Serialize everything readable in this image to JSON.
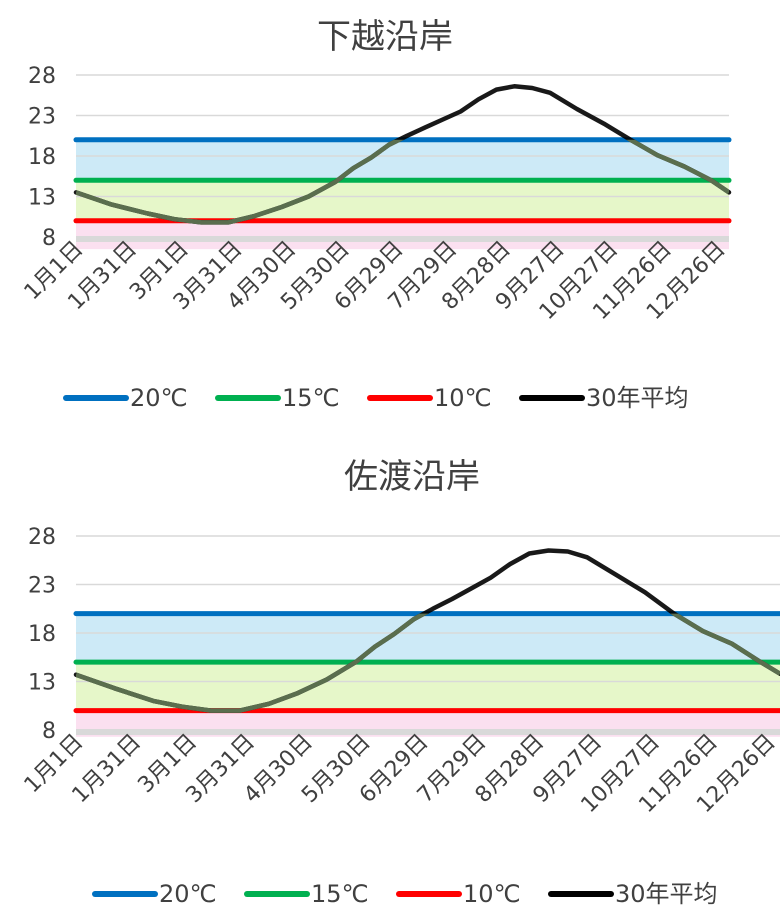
{
  "chart_data": [
    {
      "type": "line",
      "title": "下越沿岸",
      "y_ticks": [
        "28",
        "23",
        "18",
        "13",
        "8"
      ],
      "x_tick_labels": [
        "1月1日",
        "1月31日",
        "3月1日",
        "3月31日",
        "4月30日",
        "5月30日",
        "6月29日",
        "7月29日",
        "8月28日",
        "9月27日",
        "10月27日",
        "11月26日",
        "12月26日"
      ],
      "x_tick_days": [
        0,
        30,
        59,
        89,
        119,
        149,
        179,
        209,
        239,
        269,
        299,
        329,
        359
      ],
      "ylim": [
        8,
        28
      ],
      "grid": true,
      "legend_position": "bottom",
      "bands": [
        {
          "from": 6.5,
          "to": 10,
          "color": "#fbe0f0"
        },
        {
          "from": 10,
          "to": 15,
          "color": "#e6f7c9"
        },
        {
          "from": 15,
          "to": 20,
          "color": "#cdeaf7"
        }
      ],
      "series": [
        {
          "name": "20℃",
          "color": "#0070c0",
          "x": [
            0,
            365
          ],
          "values": [
            20,
            20
          ]
        },
        {
          "name": "15℃",
          "color": "#00b050",
          "x": [
            0,
            365
          ],
          "values": [
            15,
            15
          ]
        },
        {
          "name": "10℃",
          "color": "#ff0000",
          "x": [
            0,
            365
          ],
          "values": [
            10,
            10
          ]
        },
        {
          "name": "30年平均",
          "color": "#000000",
          "x": [
            0,
            20,
            40,
            55,
            70,
            85,
            100,
            115,
            130,
            145,
            155,
            165,
            175,
            185,
            195,
            205,
            215,
            225,
            235,
            245,
            255,
            265,
            280,
            295,
            310,
            325,
            340,
            355,
            365
          ],
          "values": [
            13.5,
            12.0,
            10.9,
            10.2,
            9.8,
            9.8,
            10.6,
            11.7,
            13.0,
            14.8,
            16.5,
            17.8,
            19.4,
            20.5,
            21.5,
            22.5,
            23.5,
            25.0,
            26.2,
            26.6,
            26.4,
            25.8,
            23.8,
            22.0,
            20.0,
            18.1,
            16.7,
            15.0,
            13.5
          ]
        }
      ]
    },
    {
      "type": "line",
      "title": "佐渡沿岸",
      "y_ticks": [
        "28",
        "23",
        "18",
        "13",
        "8"
      ],
      "x_tick_labels": [
        "1月1日",
        "1月31日",
        "3月1日",
        "3月31日",
        "4月30日",
        "5月30日",
        "6月29日",
        "7月29日",
        "8月28日",
        "9月27日",
        "10月27日",
        "11月26日",
        "12月26日"
      ],
      "x_tick_days": [
        0,
        30,
        59,
        89,
        119,
        149,
        179,
        209,
        239,
        269,
        299,
        329,
        359
      ],
      "ylim": [
        8,
        28
      ],
      "grid": true,
      "legend_position": "bottom",
      "bands": [
        {
          "from": 7.3,
          "to": 10,
          "color": "#fbe0f0"
        },
        {
          "from": 10,
          "to": 15,
          "color": "#e6f7c9"
        },
        {
          "from": 15,
          "to": 20,
          "color": "#cdeaf7"
        }
      ],
      "series": [
        {
          "name": "20℃",
          "color": "#0070c0",
          "x": [
            0,
            365
          ],
          "values": [
            20,
            20
          ]
        },
        {
          "name": "15℃",
          "color": "#00b050",
          "x": [
            0,
            365
          ],
          "values": [
            15,
            15
          ]
        },
        {
          "name": "10℃",
          "color": "#ff0000",
          "x": [
            0,
            365
          ],
          "values": [
            10,
            10
          ]
        },
        {
          "name": "30年平均",
          "color": "#000000",
          "x": [
            0,
            20,
            40,
            55,
            70,
            85,
            100,
            115,
            130,
            145,
            155,
            165,
            175,
            185,
            195,
            205,
            215,
            225,
            235,
            245,
            255,
            265,
            280,
            295,
            310,
            325,
            340,
            355,
            365
          ],
          "values": [
            13.7,
            12.3,
            11.0,
            10.4,
            10.0,
            10.0,
            10.7,
            11.8,
            13.2,
            15.0,
            16.6,
            17.9,
            19.4,
            20.5,
            21.5,
            22.6,
            23.7,
            25.1,
            26.2,
            26.5,
            26.4,
            25.8,
            24.0,
            22.2,
            20.0,
            18.2,
            16.9,
            15.0,
            13.8
          ]
        }
      ]
    }
  ]
}
